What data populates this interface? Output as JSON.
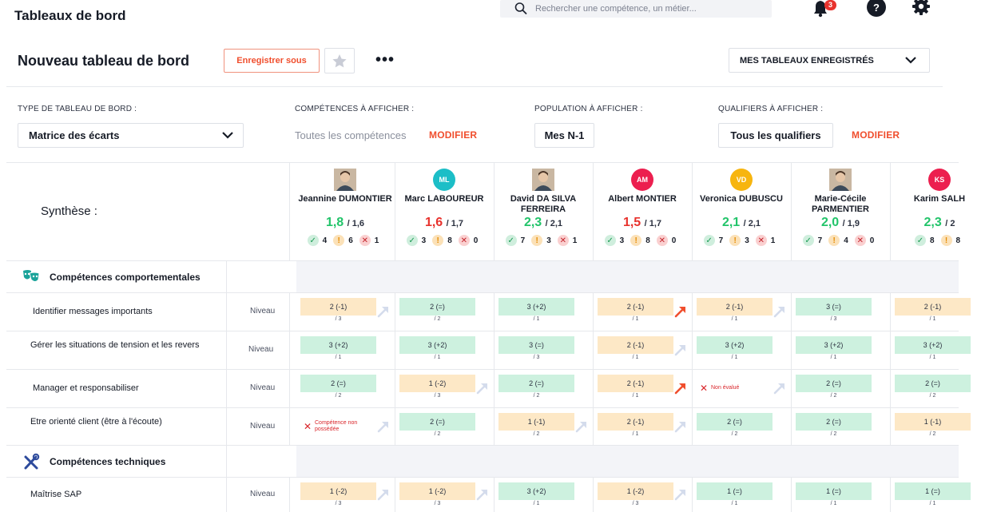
{
  "header": {
    "app_title": "Tableaux de bord",
    "search_placeholder": "Rechercher une compétence, un métier...",
    "notifications_count": "3"
  },
  "toolbar": {
    "page_title": "Nouveau tableau de bord",
    "save_as_label": "Enregistrer sous",
    "more_label": "•••",
    "saved_dashboards_label": "MES TABLEAUX ENREGISTRÉS"
  },
  "filters": {
    "type_label": "TYPE DE TABLEAU DE BORD :",
    "type_value": "Matrice des écarts",
    "skills_label": "COMPÉTENCES À AFFICHER :",
    "skills_value": "Toutes les compétences",
    "skills_modify": "MODIFIER",
    "population_label": "POPULATION À AFFICHER :",
    "population_value": "Mes N-1",
    "qualifiers_label": "QUALIFIERS À AFFICHER :",
    "qualifiers_value": "Tous les qualifiers",
    "qualifiers_modify": "MODIFIER"
  },
  "matrix": {
    "summary_label": "Synthèse :",
    "level_label": "Niveau",
    "people": [
      {
        "name": "Jeannine DUMONTIER",
        "avatar": "photo",
        "initials": "",
        "score": "1,8",
        "target": "/ 1,6",
        "score_color": "#22c46a",
        "ok": "4",
        "warn": "6",
        "ko": "1"
      },
      {
        "name": "Marc LABOUREUR",
        "avatar": "initials",
        "initials": "ML",
        "avatar_color": "#1cbec7",
        "score": "1,6",
        "target": "/ 1,7",
        "score_color": "#e8322d",
        "ok": "3",
        "warn": "8",
        "ko": "0"
      },
      {
        "name": "David DA SILVA FERREIRA",
        "avatar": "photo",
        "initials": "",
        "score": "2,3",
        "target": "/ 2,1",
        "score_color": "#22c46a",
        "ok": "7",
        "warn": "3",
        "ko": "1"
      },
      {
        "name": "Albert MONTIER",
        "avatar": "initials",
        "initials": "AM",
        "avatar_color": "#ec1f4f",
        "score": "1,5",
        "target": "/ 1,7",
        "score_color": "#e8322d",
        "ok": "3",
        "warn": "8",
        "ko": "0"
      },
      {
        "name": "Veronica DUBUSCU",
        "avatar": "initials",
        "initials": "VD",
        "avatar_color": "#f7b50f",
        "score": "2,1",
        "target": "/ 2,1",
        "score_color": "#22c46a",
        "ok": "7",
        "warn": "3",
        "ko": "1"
      },
      {
        "name": "Marie-Cécile PARMENTIER",
        "avatar": "photo",
        "initials": "",
        "score": "2,0",
        "target": "/ 1,9",
        "score_color": "#22c46a",
        "ok": "7",
        "warn": "4",
        "ko": "0"
      },
      {
        "name": "Karim SALH",
        "avatar": "initials",
        "initials": "KS",
        "avatar_color": "#ec1f4f",
        "score": "2,3",
        "target": "/ 2",
        "score_color": "#22c46a",
        "ok": "8",
        "warn": "8",
        "ko": ""
      }
    ],
    "sections": [
      {
        "title": "Compétences comportementales",
        "icon": "masks-icon"
      },
      {
        "title": "Compétences techniques",
        "icon": "tools-icon"
      }
    ],
    "skills": [
      {
        "label": "Identifier messages importants",
        "cells": [
          {
            "v": "2 (-1)",
            "s": "/ 3",
            "c": "o",
            "a": "light"
          },
          {
            "v": "2 (=)",
            "s": "/ 2",
            "c": "g",
            "a": ""
          },
          {
            "v": "3 (+2)",
            "s": "/ 1",
            "c": "g",
            "a": ""
          },
          {
            "v": "2 (-1)",
            "s": "/ 1",
            "c": "o",
            "a": "red"
          },
          {
            "v": "2 (-1)",
            "s": "/ 1",
            "c": "o",
            "a": "light"
          },
          {
            "v": "3 (=)",
            "s": "/ 3",
            "c": "g",
            "a": ""
          },
          {
            "v": "2 (-1)",
            "s": "/ 1",
            "c": "o",
            "a": ""
          }
        ]
      },
      {
        "label": "Gérer les situations de tension et les revers",
        "cells": [
          {
            "v": "3 (+2)",
            "s": "/ 1",
            "c": "g",
            "a": ""
          },
          {
            "v": "3 (+2)",
            "s": "/ 1",
            "c": "g",
            "a": ""
          },
          {
            "v": "3 (=)",
            "s": "/ 3",
            "c": "g",
            "a": ""
          },
          {
            "v": "2 (-1)",
            "s": "/ 1",
            "c": "o",
            "a": "light"
          },
          {
            "v": "3 (+2)",
            "s": "/ 1",
            "c": "g",
            "a": ""
          },
          {
            "v": "3 (+2)",
            "s": "/ 1",
            "c": "g",
            "a": ""
          },
          {
            "v": "3 (+2)",
            "s": "/ 1",
            "c": "g",
            "a": ""
          }
        ]
      },
      {
        "label": "Manager et responsabiliser",
        "cells": [
          {
            "v": "2 (=)",
            "s": "/ 2",
            "c": "g",
            "a": ""
          },
          {
            "v": "1 (-2)",
            "s": "/ 3",
            "c": "o",
            "a": "light"
          },
          {
            "v": "2 (=)",
            "s": "/ 2",
            "c": "g",
            "a": ""
          },
          {
            "v": "2 (-1)",
            "s": "/ 1",
            "c": "o",
            "a": "red"
          },
          {
            "v": "",
            "s": "",
            "c": "none",
            "a": "light",
            "x": "Non évalué"
          },
          {
            "v": "2 (=)",
            "s": "/ 2",
            "c": "g",
            "a": ""
          },
          {
            "v": "2 (=)",
            "s": "/ 2",
            "c": "g",
            "a": ""
          }
        ]
      },
      {
        "label": "Etre orienté client (être à l'écoute)",
        "cells": [
          {
            "v": "",
            "s": "",
            "c": "none",
            "a": "light",
            "x": "Compétence non possédée"
          },
          {
            "v": "2 (=)",
            "s": "/ 2",
            "c": "g",
            "a": ""
          },
          {
            "v": "1 (-1)",
            "s": "/ 2",
            "c": "o",
            "a": "light"
          },
          {
            "v": "2 (-1)",
            "s": "/ 1",
            "c": "o",
            "a": "light"
          },
          {
            "v": "2 (=)",
            "s": "/ 2",
            "c": "g",
            "a": ""
          },
          {
            "v": "2 (=)",
            "s": "/ 2",
            "c": "g",
            "a": ""
          },
          {
            "v": "1 (-1)",
            "s": "/ 2",
            "c": "o",
            "a": ""
          }
        ]
      },
      {
        "label": "Maîtrise SAP",
        "cells": [
          {
            "v": "1 (-2)",
            "s": "/ 3",
            "c": "o",
            "a": "light"
          },
          {
            "v": "1 (-2)",
            "s": "/ 3",
            "c": "o",
            "a": "light"
          },
          {
            "v": "3 (+2)",
            "s": "/ 1",
            "c": "g",
            "a": ""
          },
          {
            "v": "1 (-2)",
            "s": "/ 3",
            "c": "o",
            "a": "light"
          },
          {
            "v": "1 (=)",
            "s": "/ 1",
            "c": "g",
            "a": ""
          },
          {
            "v": "1 (=)",
            "s": "/ 1",
            "c": "g",
            "a": ""
          },
          {
            "v": "1 (=)",
            "s": "/ 1",
            "c": "g",
            "a": ""
          }
        ]
      }
    ]
  }
}
